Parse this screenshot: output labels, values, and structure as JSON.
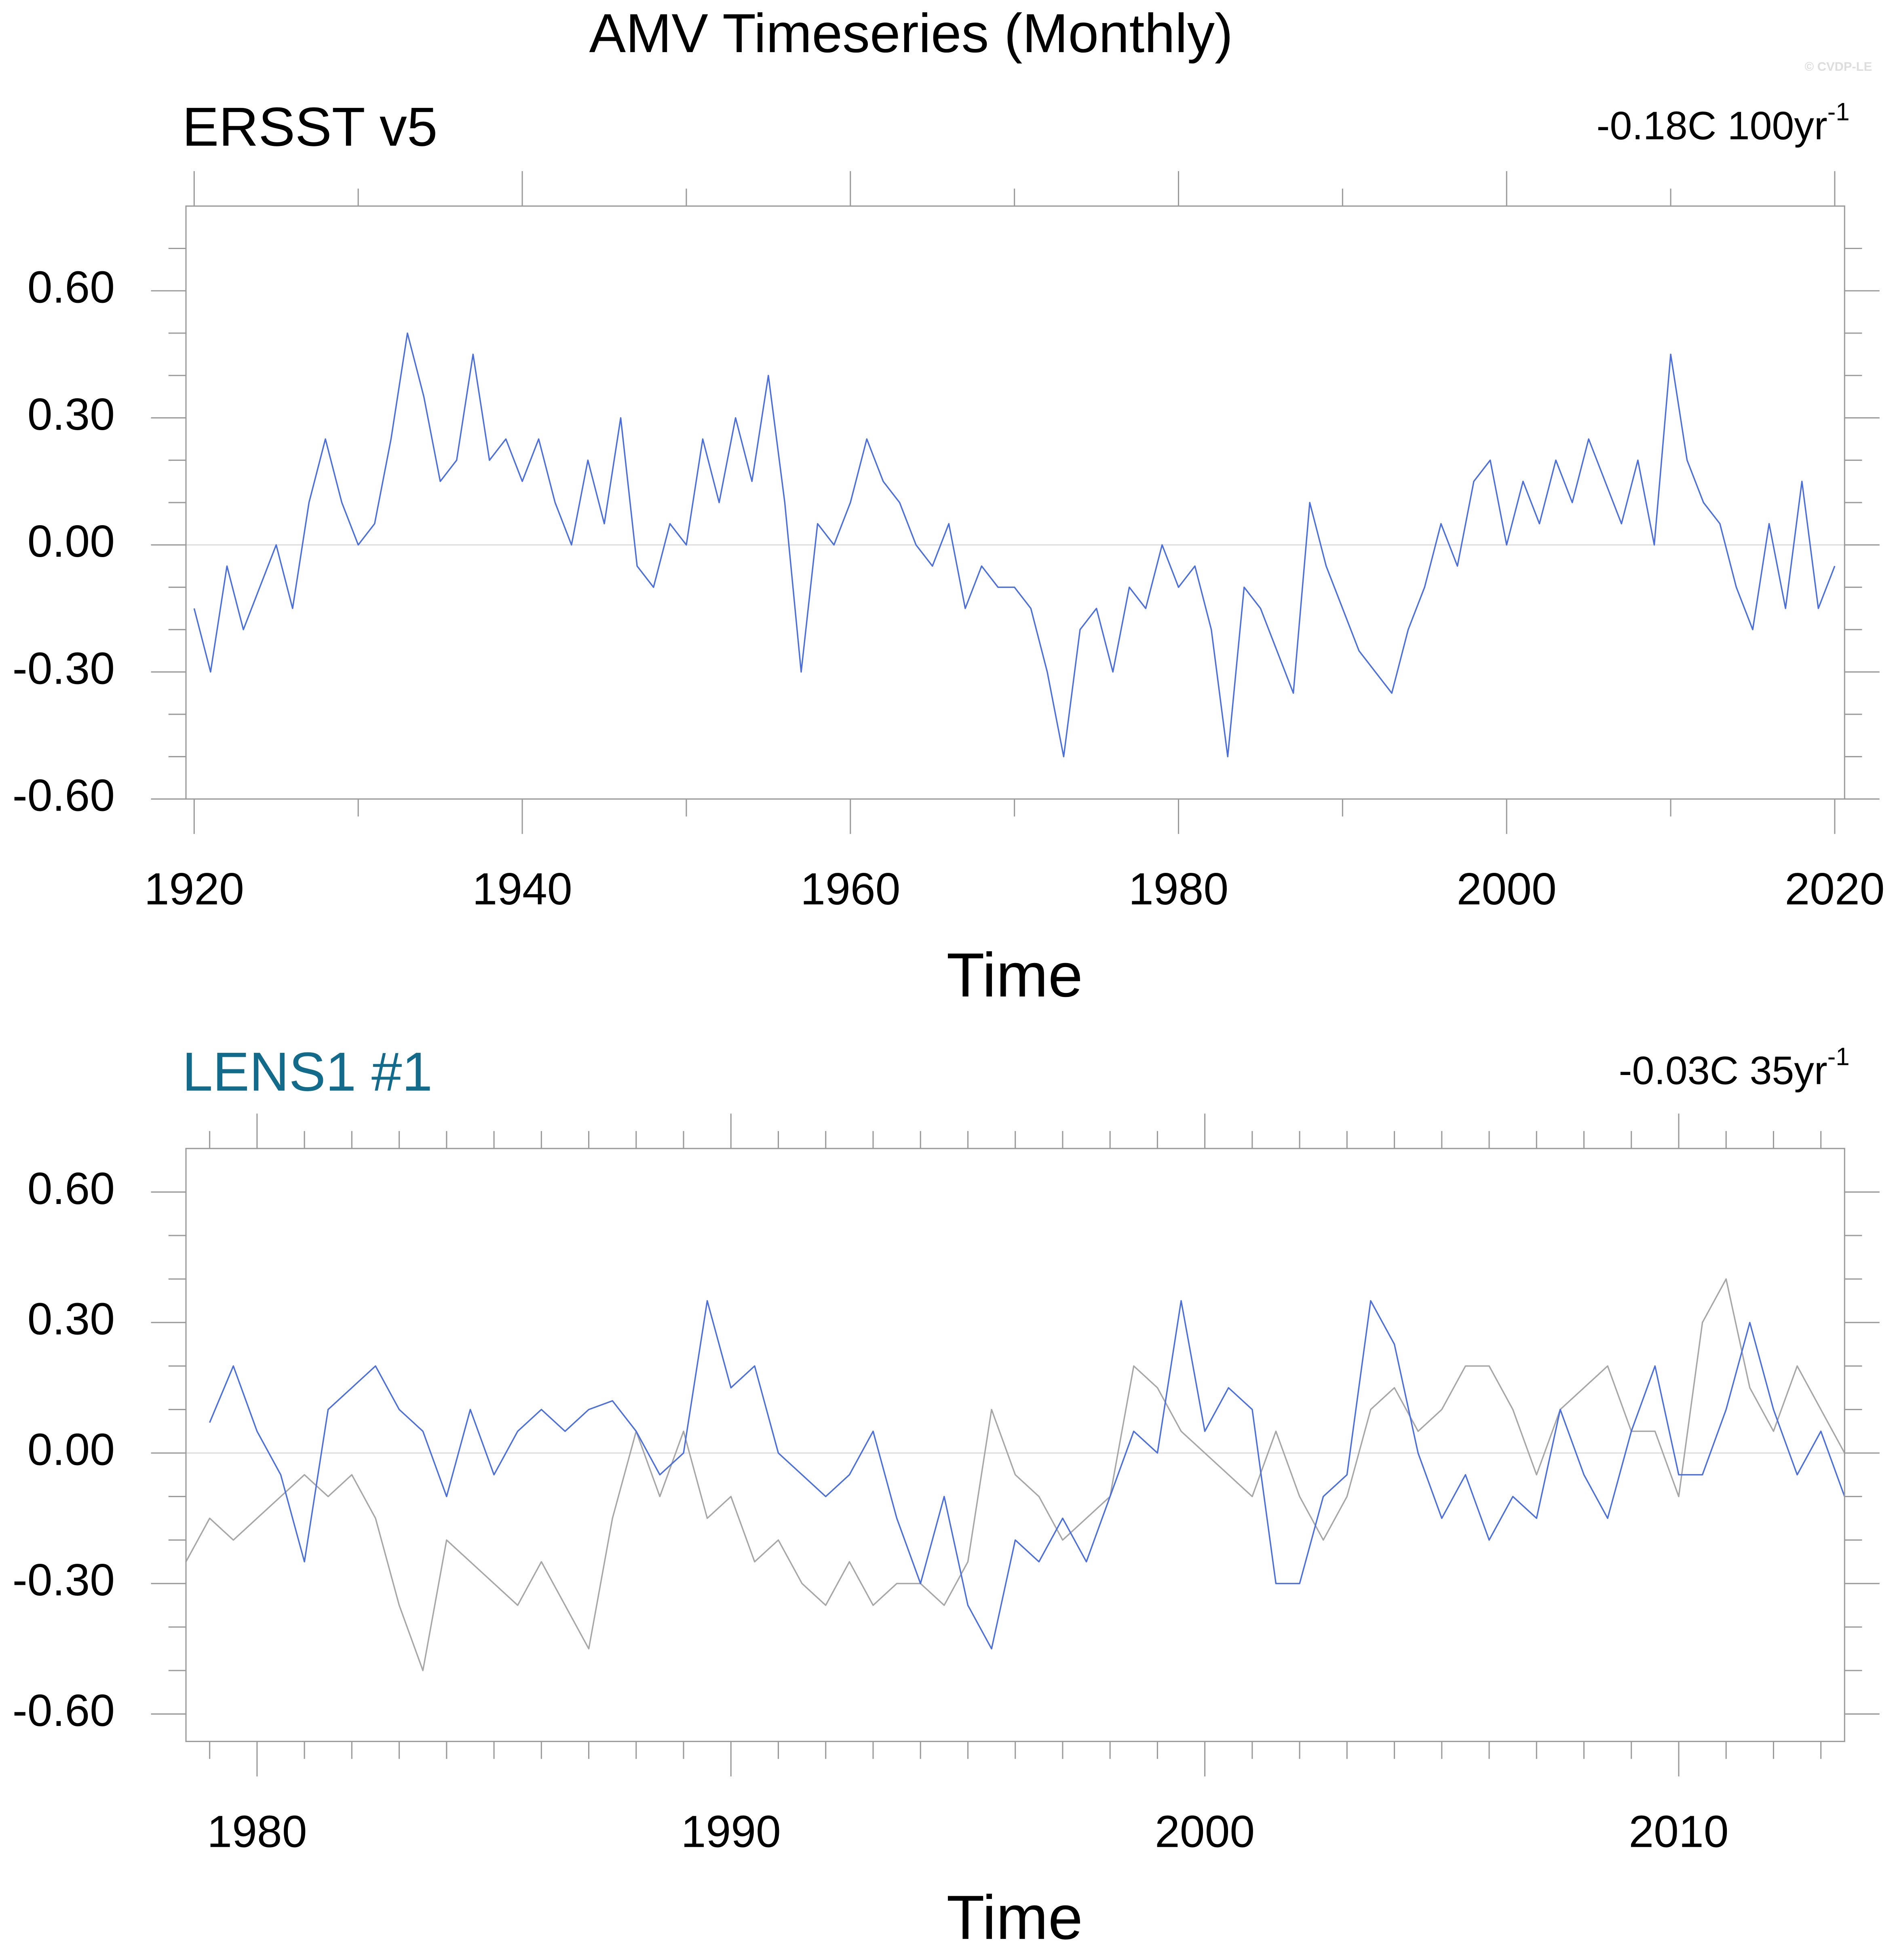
{
  "title": "AMV Timeseries (Monthly)",
  "watermark": "© CVDP-LE",
  "chart_data": [
    {
      "type": "line",
      "title": "ERSST v5",
      "title_color": "#000000",
      "annotation": "-0.18C 100yr",
      "annotation_superscript": "-1",
      "xlabel": "Time",
      "xlim": [
        1919.5,
        2020.6
      ],
      "xticks": [
        1920,
        1940,
        1960,
        1980,
        2000,
        2020
      ],
      "xminorticks": [
        1930,
        1950,
        1970,
        1990,
        2010
      ],
      "ylim": [
        -0.6,
        0.8
      ],
      "yticks": [
        {
          "value": -0.6,
          "label": "-0.60"
        },
        {
          "value": -0.3,
          "label": "-0.30"
        },
        {
          "value": 0,
          "label": "0.00"
        },
        {
          "value": 0.3,
          "label": "0.30"
        },
        {
          "value": 0.6,
          "label": "0.60"
        }
      ],
      "yminorticks": [
        -0.5,
        -0.4,
        -0.2,
        -0.1,
        0.1,
        0.2,
        0.4,
        0.5,
        0.7
      ],
      "yref": 0,
      "x": [
        1920,
        1921,
        1922,
        1923,
        1924,
        1925,
        1926,
        1927,
        1928,
        1929,
        1930,
        1931,
        1932,
        1933,
        1934,
        1935,
        1936,
        1937,
        1938,
        1939,
        1940,
        1941,
        1942,
        1943,
        1944,
        1945,
        1946,
        1947,
        1948,
        1949,
        1950,
        1951,
        1952,
        1953,
        1954,
        1955,
        1956,
        1957,
        1958,
        1959,
        1960,
        1961,
        1962,
        1963,
        1964,
        1965,
        1966,
        1967,
        1968,
        1969,
        1970,
        1971,
        1972,
        1973,
        1974,
        1975,
        1976,
        1977,
        1978,
        1979,
        1980,
        1981,
        1982,
        1983,
        1984,
        1985,
        1986,
        1987,
        1988,
        1989,
        1990,
        1991,
        1992,
        1993,
        1994,
        1995,
        1996,
        1997,
        1998,
        1999,
        2000,
        2001,
        2002,
        2003,
        2004,
        2005,
        2006,
        2007,
        2008,
        2009,
        2010,
        2011,
        2012,
        2013,
        2014,
        2015,
        2016,
        2017,
        2018,
        2019,
        2020
      ],
      "series": [
        {
          "color": "#4a6fdc",
          "values": [
            -0.15,
            -0.3,
            -0.05,
            -0.2,
            -0.1,
            0.0,
            -0.15,
            0.1,
            0.25,
            0.1,
            0.0,
            0.05,
            0.25,
            0.5,
            0.35,
            0.15,
            0.2,
            0.45,
            0.2,
            0.25,
            0.15,
            0.25,
            0.1,
            0.0,
            0.2,
            0.05,
            0.3,
            -0.05,
            -0.1,
            0.05,
            0.0,
            0.25,
            0.1,
            0.3,
            0.15,
            0.4,
            0.1,
            -0.3,
            0.05,
            0.0,
            0.1,
            0.25,
            0.15,
            0.1,
            0.0,
            -0.05,
            0.05,
            -0.15,
            -0.05,
            -0.1,
            -0.1,
            -0.15,
            -0.3,
            -0.5,
            -0.2,
            -0.15,
            -0.3,
            -0.1,
            -0.15,
            0.0,
            -0.1,
            -0.05,
            -0.2,
            -0.5,
            -0.1,
            -0.15,
            -0.25,
            -0.35,
            0.1,
            -0.05,
            -0.15,
            -0.25,
            -0.3,
            -0.35,
            -0.2,
            -0.1,
            0.05,
            -0.05,
            0.15,
            0.2,
            0.0,
            0.15,
            0.05,
            0.2,
            0.1,
            0.25,
            0.15,
            0.05,
            0.2,
            0.0,
            0.45,
            0.2,
            0.1,
            0.05,
            -0.1,
            -0.2,
            0.05,
            -0.15,
            0.15,
            -0.15,
            -0.05
          ]
        }
      ]
    },
    {
      "type": "line",
      "title": "LENS1 #1",
      "title_color": "#136b8c",
      "annotation": "-0.03C 35yr",
      "annotation_superscript": "-1",
      "xlabel": "Time",
      "xlim": [
        1978.5,
        2013.5
      ],
      "xticks": [
        1980,
        1990,
        2000,
        2010
      ],
      "xminorticks": [
        1979,
        1981,
        1982,
        1983,
        1984,
        1985,
        1986,
        1987,
        1988,
        1989,
        1991,
        1992,
        1993,
        1994,
        1995,
        1996,
        1997,
        1998,
        1999,
        2001,
        2002,
        2003,
        2004,
        2005,
        2006,
        2007,
        2008,
        2009,
        2011,
        2012,
        2013
      ],
      "ylim": [
        -0.663,
        0.7
      ],
      "yticks": [
        {
          "value": -0.6,
          "label": "-0.60"
        },
        {
          "value": -0.3,
          "label": "-0.30"
        },
        {
          "value": 0,
          "label": "0.00"
        },
        {
          "value": 0.3,
          "label": "0.30"
        },
        {
          "value": 0.6,
          "label": "0.60"
        }
      ],
      "yminorticks": [
        -0.5,
        -0.4,
        -0.2,
        -0.1,
        0.1,
        0.2,
        0.4,
        0.5
      ],
      "yref": 0,
      "x": [
        1978.5,
        1979,
        1979.5,
        1980,
        1980.5,
        1981,
        1981.5,
        1982,
        1982.5,
        1983,
        1983.5,
        1984,
        1984.5,
        1985,
        1985.5,
        1986,
        1986.5,
        1987,
        1987.5,
        1988,
        1988.5,
        1989,
        1989.5,
        1990,
        1990.5,
        1991,
        1991.5,
        1992,
        1992.5,
        1993,
        1993.5,
        1994,
        1994.5,
        1995,
        1995.5,
        1996,
        1996.5,
        1997,
        1997.5,
        1998,
        1998.5,
        1999,
        1999.5,
        2000,
        2000.5,
        2001,
        2001.5,
        2002,
        2002.5,
        2003,
        2003.5,
        2004,
        2004.5,
        2005,
        2005.5,
        2006,
        2006.5,
        2007,
        2007.5,
        2008,
        2008.5,
        2009,
        2009.5,
        2010,
        2010.5,
        2011,
        2011.5,
        2012,
        2012.5,
        2013,
        2013.5
      ],
      "series": [
        {
          "color": "#a6a6a6",
          "values": [
            -0.25,
            -0.15,
            -0.2,
            -0.15,
            -0.1,
            -0.05,
            -0.1,
            -0.05,
            -0.15,
            -0.35,
            -0.5,
            -0.2,
            -0.25,
            -0.3,
            -0.35,
            -0.25,
            -0.35,
            -0.45,
            -0.15,
            0.05,
            -0.1,
            0.05,
            -0.15,
            -0.1,
            -0.25,
            -0.2,
            -0.3,
            -0.35,
            -0.25,
            -0.35,
            -0.3,
            -0.3,
            -0.35,
            -0.25,
            0.1,
            -0.05,
            -0.1,
            -0.2,
            -0.15,
            -0.1,
            0.2,
            0.15,
            0.05,
            0.0,
            -0.05,
            -0.1,
            0.05,
            -0.1,
            -0.2,
            -0.1,
            0.1,
            0.15,
            0.05,
            0.1,
            0.2,
            0.2,
            0.1,
            -0.05,
            0.1,
            0.15,
            0.2,
            0.05,
            0.05,
            -0.1,
            0.3,
            0.4,
            0.15,
            0.05,
            0.2,
            0.1,
            0.0
          ]
        },
        {
          "color": "#4a6fdc",
          "values": [
            null,
            0.07,
            0.2,
            0.05,
            -0.05,
            -0.25,
            0.1,
            0.15,
            0.2,
            0.1,
            0.05,
            -0.1,
            0.1,
            -0.05,
            0.05,
            0.1,
            0.05,
            0.1,
            0.12,
            0.05,
            -0.05,
            0.0,
            0.35,
            0.15,
            0.2,
            0.0,
            -0.05,
            -0.1,
            -0.05,
            0.05,
            -0.15,
            -0.3,
            -0.1,
            -0.35,
            -0.45,
            -0.2,
            -0.25,
            -0.15,
            -0.25,
            -0.1,
            0.05,
            0.0,
            0.35,
            0.05,
            0.15,
            0.1,
            -0.3,
            -0.3,
            -0.1,
            -0.05,
            0.35,
            0.25,
            0.0,
            -0.15,
            -0.05,
            -0.2,
            -0.1,
            -0.15,
            0.1,
            -0.05,
            -0.15,
            0.05,
            0.2,
            -0.05,
            -0.05,
            0.1,
            0.3,
            0.1,
            -0.05,
            0.05,
            -0.1
          ]
        }
      ]
    }
  ]
}
